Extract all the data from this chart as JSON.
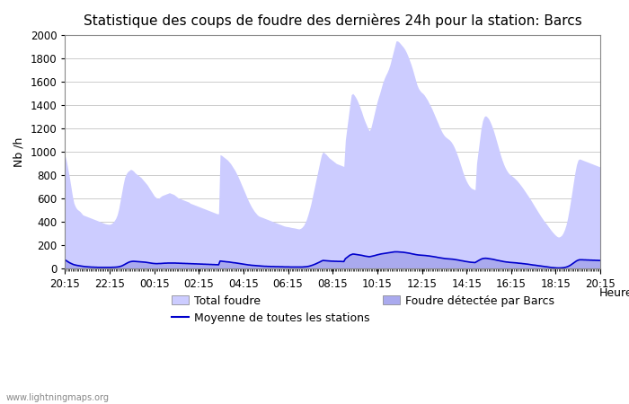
{
  "title": "Statistique des coups de foudre des dernières 24h pour la station: Barcs",
  "xlabel": "Heure",
  "ylabel": "Nb /h",
  "watermark": "www.lightningmaps.org",
  "ylim": [
    0,
    2000
  ],
  "x_labels": [
    "20:15",
    "22:15",
    "00:15",
    "02:15",
    "04:15",
    "06:15",
    "08:15",
    "10:15",
    "12:15",
    "14:15",
    "16:15",
    "18:15",
    "20:15"
  ],
  "total_foudre_color": "#ccccff",
  "barcs_color": "#aaaaee",
  "moyenne_color": "#0000cc",
  "background_color": "#ffffff",
  "plot_bg_color": "#ffffff",
  "total_foudre": [
    970,
    920,
    850,
    780,
    700,
    620,
    560,
    530,
    510,
    500,
    490,
    475,
    460,
    455,
    450,
    445,
    440,
    435,
    430,
    425,
    420,
    415,
    410,
    405,
    400,
    395,
    390,
    385,
    382,
    380,
    380,
    385,
    395,
    410,
    430,
    460,
    510,
    580,
    650,
    720,
    780,
    810,
    830,
    840,
    850,
    845,
    835,
    820,
    810,
    800,
    790,
    780,
    765,
    750,
    735,
    720,
    700,
    680,
    660,
    640,
    620,
    610,
    600,
    605,
    615,
    625,
    630,
    635,
    640,
    645,
    650,
    645,
    640,
    635,
    625,
    615,
    605,
    600,
    595,
    590,
    585,
    580,
    575,
    570,
    560,
    555,
    550,
    545,
    540,
    535,
    530,
    525,
    520,
    515,
    510,
    505,
    500,
    495,
    490,
    485,
    480,
    475,
    470,
    470,
    975,
    970,
    960,
    950,
    940,
    930,
    915,
    900,
    880,
    860,
    840,
    815,
    790,
    760,
    730,
    700,
    670,
    640,
    610,
    580,
    555,
    530,
    510,
    490,
    475,
    460,
    450,
    445,
    440,
    435,
    430,
    425,
    420,
    415,
    410,
    405,
    400,
    395,
    390,
    385,
    380,
    375,
    370,
    365,
    362,
    360,
    358,
    355,
    352,
    350,
    348,
    345,
    342,
    340,
    345,
    355,
    370,
    395,
    425,
    465,
    510,
    560,
    620,
    680,
    740,
    800,
    860,
    920,
    975,
    1000,
    990,
    980,
    965,
    950,
    940,
    930,
    920,
    910,
    900,
    895,
    890,
    885,
    880,
    875,
    1100,
    1200,
    1300,
    1400,
    1490,
    1500,
    1485,
    1465,
    1440,
    1410,
    1375,
    1340,
    1300,
    1265,
    1235,
    1205,
    1180,
    1200,
    1250,
    1305,
    1360,
    1415,
    1460,
    1500,
    1545,
    1590,
    1625,
    1655,
    1680,
    1710,
    1750,
    1800,
    1850,
    1900,
    1950,
    1950,
    1940,
    1925,
    1910,
    1895,
    1875,
    1850,
    1820,
    1785,
    1750,
    1710,
    1665,
    1620,
    1575,
    1545,
    1525,
    1510,
    1500,
    1485,
    1465,
    1445,
    1420,
    1395,
    1370,
    1340,
    1310,
    1280,
    1250,
    1220,
    1190,
    1165,
    1145,
    1130,
    1120,
    1110,
    1100,
    1085,
    1065,
    1040,
    1010,
    975,
    940,
    900,
    860,
    820,
    785,
    755,
    730,
    710,
    695,
    685,
    680,
    675,
    900,
    1000,
    1100,
    1200,
    1265,
    1300,
    1310,
    1300,
    1285,
    1260,
    1230,
    1195,
    1155,
    1110,
    1065,
    1020,
    975,
    935,
    900,
    870,
    845,
    825,
    810,
    800,
    790,
    780,
    768,
    755,
    740,
    724,
    707,
    690,
    671,
    652,
    633,
    614,
    595,
    574,
    553,
    532,
    511,
    490,
    470,
    450,
    431,
    413,
    396,
    380,
    362,
    345,
    328,
    312,
    298,
    285,
    275,
    270,
    275,
    285,
    305,
    335,
    375,
    430,
    500,
    578,
    660,
    745,
    825,
    890,
    930,
    940,
    935,
    930,
    925,
    920,
    915,
    910,
    905,
    900,
    895,
    890,
    885,
    880,
    875,
    870
  ],
  "barcs_foudre": [
    80,
    72,
    63,
    54,
    48,
    42,
    37,
    34,
    31,
    29,
    27,
    25,
    23,
    21,
    20,
    19,
    18,
    17,
    16,
    16,
    15,
    15,
    14,
    14,
    13,
    13,
    13,
    13,
    13,
    13,
    13,
    13,
    14,
    14,
    15,
    16,
    18,
    22,
    27,
    34,
    42,
    50,
    57,
    62,
    65,
    67,
    67,
    66,
    65,
    64,
    63,
    62,
    61,
    60,
    58,
    56,
    54,
    52,
    50,
    48,
    47,
    46,
    46,
    46,
    47,
    48,
    49,
    50,
    50,
    51,
    51,
    51,
    51,
    51,
    50,
    50,
    49,
    49,
    48,
    48,
    47,
    47,
    46,
    46,
    45,
    45,
    44,
    44,
    43,
    43,
    42,
    42,
    41,
    41,
    40,
    40,
    39,
    39,
    38,
    38,
    37,
    37,
    36,
    36,
    70,
    68,
    67,
    65,
    64,
    62,
    61,
    59,
    57,
    55,
    53,
    51,
    49,
    47,
    45,
    43,
    41,
    39,
    37,
    35,
    34,
    32,
    31,
    29,
    28,
    27,
    26,
    25,
    24,
    23,
    22,
    22,
    21,
    21,
    20,
    20,
    19,
    19,
    19,
    18,
    18,
    18,
    17,
    17,
    17,
    16,
    16,
    16,
    16,
    15,
    15,
    15,
    15,
    15,
    15,
    15,
    16,
    17,
    19,
    21,
    24,
    28,
    32,
    37,
    43,
    49,
    55,
    62,
    69,
    74,
    73,
    72,
    71,
    70,
    69,
    68,
    68,
    67,
    67,
    66,
    66,
    66,
    65,
    65,
    90,
    100,
    110,
    120,
    125,
    130,
    129,
    127,
    125,
    123,
    121,
    119,
    116,
    113,
    111,
    109,
    107,
    109,
    112,
    115,
    118,
    122,
    125,
    128,
    131,
    133,
    135,
    137,
    139,
    141,
    143,
    145,
    147,
    149,
    149,
    149,
    148,
    147,
    146,
    145,
    143,
    141,
    139,
    137,
    134,
    131,
    129,
    126,
    124,
    122,
    121,
    120,
    119,
    118,
    117,
    115,
    114,
    112,
    110,
    108,
    106,
    104,
    101,
    99,
    97,
    95,
    93,
    91,
    90,
    89,
    88,
    87,
    86,
    84,
    82,
    80,
    78,
    75,
    73,
    71,
    68,
    66,
    64,
    62,
    60,
    59,
    58,
    57,
    65,
    72,
    79,
    86,
    91,
    93,
    94,
    93,
    91,
    89,
    87,
    85,
    82,
    79,
    76,
    74,
    71,
    69,
    66,
    64,
    62,
    61,
    59,
    58,
    57,
    56,
    55,
    54,
    52,
    51,
    50,
    48,
    47,
    45,
    44,
    42,
    40,
    38,
    36,
    35,
    33,
    31,
    29,
    28,
    26,
    24,
    22,
    21,
    19,
    17,
    15,
    14,
    12,
    11,
    10,
    10,
    10,
    11,
    12,
    14,
    17,
    21,
    27,
    34,
    43,
    53,
    62,
    70,
    76,
    80,
    80,
    80,
    79,
    79,
    78,
    78,
    77,
    77,
    76,
    76,
    75,
    75,
    74,
    74
  ],
  "moyenne": [
    75,
    67,
    58,
    51,
    45,
    39,
    34,
    31,
    28,
    26,
    24,
    22,
    20,
    18,
    17,
    16,
    15,
    14,
    13,
    13,
    12,
    12,
    11,
    11,
    11,
    11,
    11,
    11,
    11,
    11,
    11,
    11,
    12,
    12,
    13,
    14,
    16,
    19,
    23,
    29,
    36,
    43,
    50,
    56,
    60,
    62,
    63,
    62,
    61,
    60,
    59,
    58,
    57,
    56,
    55,
    53,
    51,
    49,
    47,
    45,
    44,
    43,
    43,
    44,
    44,
    45,
    46,
    47,
    47,
    48,
    48,
    48,
    48,
    48,
    48,
    47,
    47,
    46,
    46,
    45,
    45,
    44,
    44,
    43,
    43,
    42,
    42,
    41,
    41,
    40,
    40,
    39,
    39,
    38,
    38,
    37,
    37,
    36,
    36,
    35,
    35,
    34,
    34,
    33,
    65,
    64,
    62,
    61,
    59,
    58,
    57,
    55,
    53,
    51,
    50,
    48,
    46,
    44,
    42,
    40,
    38,
    36,
    34,
    32,
    31,
    29,
    28,
    27,
    26,
    25,
    24,
    23,
    22,
    21,
    20,
    20,
    19,
    19,
    18,
    18,
    18,
    17,
    17,
    17,
    16,
    16,
    16,
    15,
    15,
    15,
    15,
    14,
    14,
    14,
    14,
    14,
    14,
    14,
    14,
    14,
    15,
    16,
    17,
    19,
    22,
    26,
    30,
    35,
    40,
    46,
    52,
    58,
    65,
    70,
    69,
    68,
    67,
    66,
    65,
    64,
    64,
    63,
    63,
    62,
    62,
    62,
    61,
    61,
    85,
    95,
    105,
    115,
    120,
    125,
    124,
    122,
    120,
    118,
    116,
    114,
    111,
    108,
    106,
    104,
    102,
    104,
    107,
    110,
    113,
    117,
    120,
    123,
    126,
    128,
    130,
    132,
    134,
    136,
    138,
    140,
    142,
    144,
    144,
    144,
    143,
    142,
    141,
    140,
    138,
    136,
    134,
    132,
    129,
    126,
    124,
    121,
    119,
    117,
    116,
    115,
    114,
    113,
    112,
    110,
    109,
    107,
    105,
    103,
    101,
    99,
    96,
    94,
    92,
    90,
    88,
    86,
    85,
    84,
    83,
    82,
    81,
    79,
    77,
    75,
    73,
    70,
    68,
    66,
    63,
    61,
    59,
    57,
    55,
    54,
    53,
    52,
    60,
    67,
    74,
    81,
    86,
    88,
    89,
    88,
    86,
    84,
    82,
    80,
    77,
    74,
    71,
    69,
    66,
    64,
    61,
    59,
    57,
    56,
    54,
    53,
    52,
    51,
    50,
    49,
    47,
    46,
    45,
    43,
    42,
    40,
    39,
    37,
    35,
    33,
    31,
    30,
    28,
    26,
    24,
    23,
    21,
    19,
    17,
    16,
    14,
    12,
    10,
    9,
    8,
    7,
    6,
    6,
    6,
    7,
    8,
    10,
    13,
    17,
    23,
    30,
    39,
    49,
    58,
    66,
    72,
    76,
    76,
    76,
    75,
    75,
    74,
    74,
    73,
    73,
    72,
    72,
    71,
    71,
    70,
    70
  ],
  "title_fontsize": 11,
  "legend_fontsize": 9,
  "tick_fontsize": 8.5,
  "label_fontsize": 9
}
